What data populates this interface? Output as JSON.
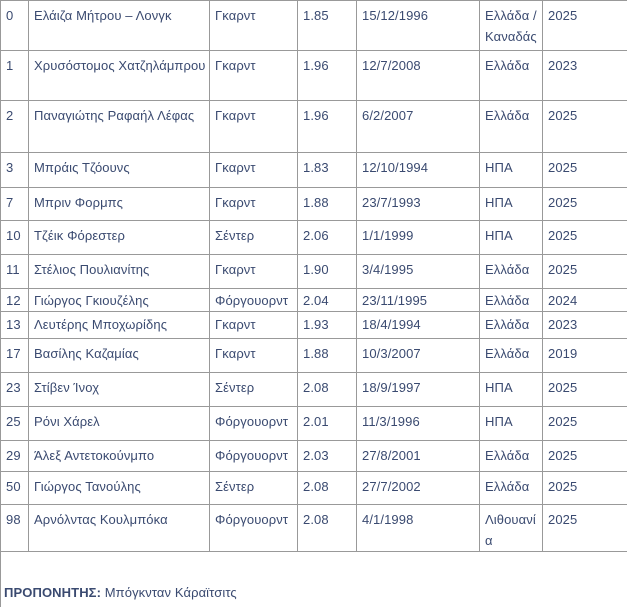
{
  "table": {
    "columns": [
      "number",
      "name",
      "position",
      "height",
      "birthdate",
      "country",
      "year"
    ],
    "rows": [
      {
        "num": "0",
        "name": "Ελάιζα Μήτρου – Λονγκ",
        "position": "Γκαρντ",
        "height": "1.85",
        "dob": "15/12/1996",
        "country": "Ελλάδα / Καναδάς",
        "year": "2025"
      },
      {
        "num": "1",
        "name": "Χρυσόστομος Χατζηλάμπρου",
        "position": "Γκαρντ",
        "height": "1.96",
        "dob": "12/7/2008",
        "country": "Ελλάδα",
        "year": "2023"
      },
      {
        "num": "2",
        "name": "Παναγιώτης Ραφαήλ Λέφας",
        "position": "Γκαρντ",
        "height": "1.96",
        "dob": "6/2/2007",
        "country": "Ελλάδα",
        "year": "2025"
      },
      {
        "num": "3",
        "name": "Μπράις Τζόουνς",
        "position": "Γκαρντ",
        "height": "1.83",
        "dob": "12/10/1994",
        "country": "ΗΠΑ",
        "year": "2025"
      },
      {
        "num": "7",
        "name": "Μπριν Φορμπς",
        "position": "Γκαρντ",
        "height": "1.88",
        "dob": "23/7/1993",
        "country": "ΗΠΑ",
        "year": "2025"
      },
      {
        "num": "10",
        "name": "Τζέικ Φόρεστερ",
        "position": "Σέντερ",
        "height": "2.06",
        "dob": "1/1/1999",
        "country": "ΗΠΑ",
        "year": "2025"
      },
      {
        "num": "11",
        "name": "Στέλιος Πουλιανίτης",
        "position": "Γκαρντ",
        "height": "1.90",
        "dob": "3/4/1995",
        "country": "Ελλάδα",
        "year": "2025"
      },
      {
        "num": "12",
        "name": "Γιώργος Γκιουζέλης",
        "position": "Φόργουορντ",
        "height": "2.04",
        "dob": "23/11/1995",
        "country": "Ελλάδα",
        "year": "2024"
      },
      {
        "num": "13",
        "name": "Λευτέρης Μποχωρίδης",
        "position": "Γκαρντ",
        "height": "1.93",
        "dob": "18/4/1994",
        "country": "Ελλάδα",
        "year": "2023"
      },
      {
        "num": "17",
        "name": "Βασίλης Καζαμίας",
        "position": "Γκαρντ",
        "height": "1.88",
        "dob": "10/3/2007",
        "country": "Ελλάδα",
        "year": "2019"
      },
      {
        "num": "23",
        "name": "Στίβεν Ίνοχ",
        "position": "Σέντερ",
        "height": "2.08",
        "dob": "18/9/1997",
        "country": "ΗΠΑ",
        "year": "2025"
      },
      {
        "num": "25",
        "name": "Ρόνι Χάρελ",
        "position": "Φόργουορντ",
        "height": "2.01",
        "dob": "11/3/1996",
        "country": "ΗΠΑ",
        "year": "2025"
      },
      {
        "num": "29",
        "name": "Άλεξ Αντετοκούνμπο",
        "position": "Φόργουορντ",
        "height": "2.03",
        "dob": "27/8/2001",
        "country": "Ελλάδα",
        "year": "2025"
      },
      {
        "num": "50",
        "name": "Γιώργος Τανούλης",
        "position": "Σέντερ",
        "height": "2.08",
        "dob": "27/7/2002",
        "country": "Ελλάδα",
        "year": "2025"
      },
      {
        "num": "98",
        "name": "Αρνόλντας Κουλμπόκα",
        "position": "Φόργουορντ",
        "height": "2.08",
        "dob": "4/1/1998",
        "country": "Λιθουανία",
        "year": "2025"
      }
    ]
  },
  "footer": {
    "coach_label": "ΠΡΟΠΟΝΗΤΗΣ:",
    "coach_name": "Μπόγκνταν Κάραϊτσιτς"
  },
  "colors": {
    "text": "#3a4a70",
    "border": "#999999",
    "background": "#ffffff"
  }
}
